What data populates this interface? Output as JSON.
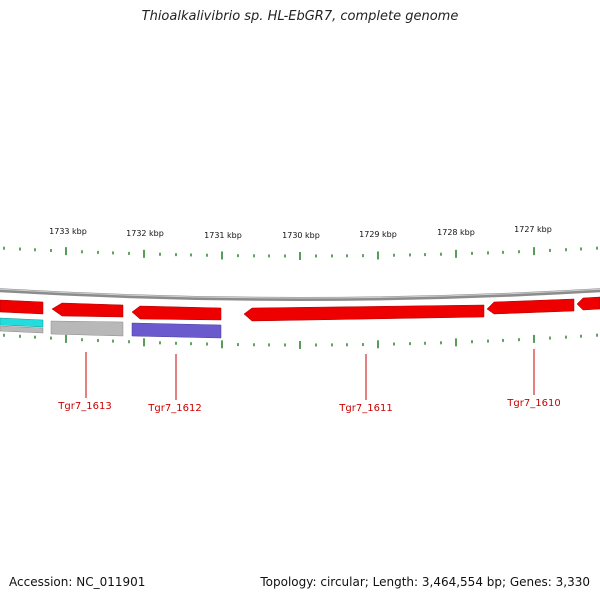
{
  "title": "Thioalkalivibrio sp. HL-EbGR7, complete genome",
  "accession": "Accession: NC_011901",
  "summary": "Topology: circular; Length: 3,464,554 bp; Genes: 3,330",
  "colors": {
    "backbone": "#8c8c8c",
    "tick": "#1f7a1f",
    "gene_red": "#ee0000",
    "gene_gray": "#b0b0b0",
    "gene_cyan": "#22dddd",
    "gene_purple": "#6a5acd",
    "label_red": "#cc0000"
  },
  "scale_labels": [
    "1733 kbp",
    "1732 kbp",
    "1731 kbp",
    "1730 kbp",
    "1729 kbp",
    "1728 kbp",
    "1727 kbp"
  ],
  "gene_labels": [
    "Tgr7_1613",
    "Tgr7_1612",
    "Tgr7_1611",
    "Tgr7_1610"
  ]
}
